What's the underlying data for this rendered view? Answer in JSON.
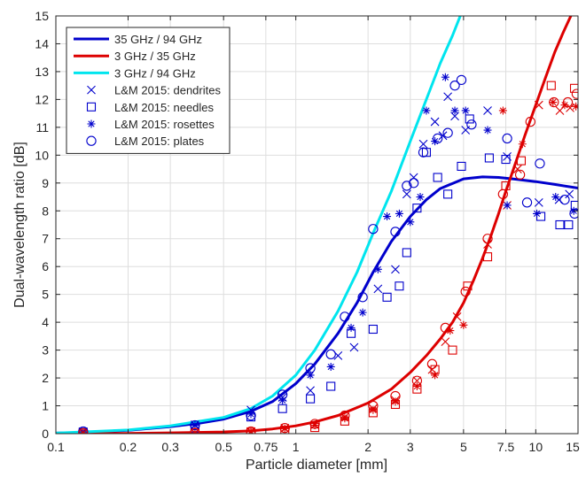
{
  "chart_data": {
    "type": "scatter",
    "xlabel": "Particle diameter [mm]",
    "ylabel": "Dual-wavelength ratio [dB]",
    "xscale": "log",
    "xlim": [
      0.1,
      15
    ],
    "ylim": [
      0,
      15
    ],
    "grid": true,
    "legend_position": "top-left",
    "x_ticks": [
      {
        "value": 0.1,
        "label": "0.1"
      },
      {
        "value": 0.2,
        "label": "0.2"
      },
      {
        "value": 0.3,
        "label": "0.3"
      },
      {
        "value": 0.5,
        "label": "0.5"
      },
      {
        "value": 0.75,
        "label": "0.75"
      },
      {
        "value": 1,
        "label": "1"
      },
      {
        "value": 2,
        "label": "2"
      },
      {
        "value": 3,
        "label": "3"
      },
      {
        "value": 5,
        "label": "5"
      },
      {
        "value": 7.5,
        "label": "7.5"
      },
      {
        "value": 10,
        "label": "10"
      },
      {
        "value": 15,
        "label": "15"
      }
    ],
    "y_ticks": [
      0,
      1,
      2,
      3,
      4,
      5,
      6,
      7,
      8,
      9,
      10,
      11,
      12,
      13,
      14,
      15
    ],
    "lines": [
      {
        "name": "35 GHz / 94 GHz",
        "color": "#0000cc",
        "x": [
          0.1,
          0.13,
          0.2,
          0.3,
          0.4,
          0.5,
          0.65,
          0.8,
          1.0,
          1.2,
          1.5,
          1.8,
          2.1,
          2.5,
          3.0,
          3.5,
          4.0,
          5.0,
          6.0,
          7.0,
          8.0,
          10.0,
          12.0,
          15.0
        ],
        "y": [
          0.02,
          0.04,
          0.12,
          0.25,
          0.38,
          0.52,
          0.8,
          1.15,
          1.8,
          2.5,
          3.6,
          4.7,
          5.8,
          6.9,
          7.8,
          8.4,
          8.8,
          9.15,
          9.22,
          9.2,
          9.15,
          9.05,
          8.95,
          8.82
        ]
      },
      {
        "name": "3 GHz / 35 GHz",
        "color": "#dd0000",
        "x": [
          0.1,
          0.2,
          0.3,
          0.5,
          0.65,
          0.8,
          1.0,
          1.2,
          1.5,
          2.0,
          2.5,
          3.0,
          3.5,
          4.0,
          4.5,
          5.0,
          5.5,
          6.0,
          6.5,
          7.0,
          7.5,
          8.0,
          9.0,
          10.0,
          11.0,
          12.0,
          13.0,
          14.0,
          15.0
        ],
        "y": [
          0.0,
          0.01,
          0.03,
          0.06,
          0.1,
          0.17,
          0.28,
          0.42,
          0.65,
          1.1,
          1.6,
          2.2,
          2.8,
          3.4,
          4.0,
          4.7,
          5.5,
          6.3,
          7.1,
          7.9,
          8.7,
          9.4,
          10.7,
          11.8,
          12.8,
          13.7,
          14.4,
          15.0,
          15.5
        ]
      },
      {
        "name": "3 GHz / 94 GHz",
        "color": "#00e5ee",
        "x": [
          0.1,
          0.2,
          0.3,
          0.5,
          0.65,
          0.8,
          1.0,
          1.2,
          1.5,
          1.8,
          2.1,
          2.5,
          3.0,
          3.5,
          4.0,
          4.5,
          5.0
        ],
        "y": [
          0.02,
          0.13,
          0.28,
          0.58,
          0.9,
          1.35,
          2.1,
          3.0,
          4.4,
          5.8,
          7.2,
          8.7,
          10.5,
          12.0,
          13.3,
          14.3,
          15.3
        ]
      }
    ],
    "scatter_series": [
      {
        "name": "L&M 2015: dendrites",
        "marker": "x",
        "points": [
          {
            "x": 0.13,
            "y": 0.07,
            "c": "#0000cc"
          },
          {
            "x": 0.38,
            "y": 0.32,
            "c": "#0000cc"
          },
          {
            "x": 0.65,
            "y": 0.85,
            "c": "#0000cc"
          },
          {
            "x": 0.88,
            "y": 1.3,
            "c": "#0000cc"
          },
          {
            "x": 1.15,
            "y": 1.55,
            "c": "#0000cc"
          },
          {
            "x": 1.5,
            "y": 2.8,
            "c": "#0000cc"
          },
          {
            "x": 1.75,
            "y": 3.1,
            "c": "#0000cc"
          },
          {
            "x": 2.2,
            "y": 5.2,
            "c": "#0000cc"
          },
          {
            "x": 2.6,
            "y": 5.9,
            "c": "#0000cc"
          },
          {
            "x": 2.9,
            "y": 8.6,
            "c": "#0000cc"
          },
          {
            "x": 3.1,
            "y": 9.2,
            "c": "#0000cc"
          },
          {
            "x": 3.4,
            "y": 10.4,
            "c": "#0000cc"
          },
          {
            "x": 3.8,
            "y": 11.2,
            "c": "#0000cc"
          },
          {
            "x": 4.1,
            "y": 10.7,
            "c": "#0000cc"
          },
          {
            "x": 4.3,
            "y": 12.1,
            "c": "#0000cc"
          },
          {
            "x": 4.6,
            "y": 11.4,
            "c": "#0000cc"
          },
          {
            "x": 5.1,
            "y": 10.9,
            "c": "#0000cc"
          },
          {
            "x": 6.3,
            "y": 11.6,
            "c": "#0000cc"
          },
          {
            "x": 7.6,
            "y": 9.95,
            "c": "#0000cc"
          },
          {
            "x": 10.3,
            "y": 8.3,
            "c": "#0000cc"
          },
          {
            "x": 12.5,
            "y": 8.4,
            "c": "#0000cc"
          },
          {
            "x": 13.8,
            "y": 8.6,
            "c": "#0000cc"
          },
          {
            "x": 0.13,
            "y": 0.02,
            "c": "#dd0000"
          },
          {
            "x": 0.38,
            "y": 0.03,
            "c": "#dd0000"
          },
          {
            "x": 0.65,
            "y": 0.08,
            "c": "#dd0000"
          },
          {
            "x": 0.9,
            "y": 0.2,
            "c": "#dd0000"
          },
          {
            "x": 1.2,
            "y": 0.32,
            "c": "#dd0000"
          },
          {
            "x": 1.6,
            "y": 0.6,
            "c": "#dd0000"
          },
          {
            "x": 2.1,
            "y": 0.9,
            "c": "#dd0000"
          },
          {
            "x": 2.6,
            "y": 1.2,
            "c": "#dd0000"
          },
          {
            "x": 3.2,
            "y": 1.9,
            "c": "#dd0000"
          },
          {
            "x": 3.7,
            "y": 2.3,
            "c": "#dd0000"
          },
          {
            "x": 4.2,
            "y": 3.3,
            "c": "#dd0000"
          },
          {
            "x": 4.7,
            "y": 4.2,
            "c": "#dd0000"
          },
          {
            "x": 6.3,
            "y": 6.8,
            "c": "#dd0000"
          },
          {
            "x": 7.6,
            "y": 8.2,
            "c": "#dd0000"
          },
          {
            "x": 8.4,
            "y": 9.5,
            "c": "#dd0000"
          },
          {
            "x": 10.3,
            "y": 11.8,
            "c": "#dd0000"
          },
          {
            "x": 12.6,
            "y": 11.6,
            "c": "#dd0000"
          },
          {
            "x": 13.9,
            "y": 11.7,
            "c": "#dd0000"
          }
        ]
      },
      {
        "name": "L&M 2015: needles",
        "marker": "square",
        "points": [
          {
            "x": 0.13,
            "y": 0.05,
            "c": "#0000cc"
          },
          {
            "x": 0.38,
            "y": 0.2,
            "c": "#0000cc"
          },
          {
            "x": 0.65,
            "y": 0.6,
            "c": "#0000cc"
          },
          {
            "x": 0.88,
            "y": 0.9,
            "c": "#0000cc"
          },
          {
            "x": 1.15,
            "y": 1.25,
            "c": "#0000cc"
          },
          {
            "x": 1.4,
            "y": 1.7,
            "c": "#0000cc"
          },
          {
            "x": 1.7,
            "y": 3.6,
            "c": "#0000cc"
          },
          {
            "x": 2.1,
            "y": 3.75,
            "c": "#0000cc"
          },
          {
            "x": 2.4,
            "y": 4.9,
            "c": "#0000cc"
          },
          {
            "x": 2.7,
            "y": 5.3,
            "c": "#0000cc"
          },
          {
            "x": 2.9,
            "y": 6.5,
            "c": "#0000cc"
          },
          {
            "x": 3.2,
            "y": 8.1,
            "c": "#0000cc"
          },
          {
            "x": 3.5,
            "y": 10.1,
            "c": "#0000cc"
          },
          {
            "x": 3.9,
            "y": 9.2,
            "c": "#0000cc"
          },
          {
            "x": 4.3,
            "y": 8.6,
            "c": "#0000cc"
          },
          {
            "x": 4.9,
            "y": 9.6,
            "c": "#0000cc"
          },
          {
            "x": 5.3,
            "y": 11.3,
            "c": "#0000cc"
          },
          {
            "x": 6.4,
            "y": 9.9,
            "c": "#0000cc"
          },
          {
            "x": 7.5,
            "y": 9.85,
            "c": "#0000cc"
          },
          {
            "x": 10.5,
            "y": 7.8,
            "c": "#0000cc"
          },
          {
            "x": 12.6,
            "y": 7.5,
            "c": "#0000cc"
          },
          {
            "x": 13.7,
            "y": 7.5,
            "c": "#0000cc"
          },
          {
            "x": 14.6,
            "y": 8.2,
            "c": "#0000cc"
          },
          {
            "x": 0.13,
            "y": 0.02,
            "c": "#dd0000"
          },
          {
            "x": 0.38,
            "y": 0.02,
            "c": "#dd0000"
          },
          {
            "x": 0.65,
            "y": 0.05,
            "c": "#dd0000"
          },
          {
            "x": 0.9,
            "y": 0.12,
            "c": "#dd0000"
          },
          {
            "x": 1.2,
            "y": 0.22,
            "c": "#dd0000"
          },
          {
            "x": 1.6,
            "y": 0.45,
            "c": "#dd0000"
          },
          {
            "x": 2.1,
            "y": 0.75,
            "c": "#dd0000"
          },
          {
            "x": 2.6,
            "y": 1.05,
            "c": "#dd0000"
          },
          {
            "x": 3.2,
            "y": 1.6,
            "c": "#dd0000"
          },
          {
            "x": 3.8,
            "y": 2.3,
            "c": "#dd0000"
          },
          {
            "x": 4.5,
            "y": 3.0,
            "c": "#dd0000"
          },
          {
            "x": 5.2,
            "y": 5.3,
            "c": "#dd0000"
          },
          {
            "x": 6.3,
            "y": 6.35,
            "c": "#dd0000"
          },
          {
            "x": 7.5,
            "y": 8.9,
            "c": "#dd0000"
          },
          {
            "x": 8.7,
            "y": 9.8,
            "c": "#dd0000"
          },
          {
            "x": 11.6,
            "y": 12.5,
            "c": "#dd0000"
          },
          {
            "x": 14.5,
            "y": 12.4,
            "c": "#dd0000"
          }
        ]
      },
      {
        "name": "L&M 2015: rosettes",
        "marker": "asterisk",
        "points": [
          {
            "x": 0.13,
            "y": 0.06,
            "c": "#0000cc"
          },
          {
            "x": 0.38,
            "y": 0.3,
            "c": "#0000cc"
          },
          {
            "x": 0.65,
            "y": 0.7,
            "c": "#0000cc"
          },
          {
            "x": 0.88,
            "y": 1.2,
            "c": "#0000cc"
          },
          {
            "x": 1.15,
            "y": 2.1,
            "c": "#0000cc"
          },
          {
            "x": 1.4,
            "y": 2.4,
            "c": "#0000cc"
          },
          {
            "x": 1.7,
            "y": 3.8,
            "c": "#0000cc"
          },
          {
            "x": 1.9,
            "y": 4.35,
            "c": "#0000cc"
          },
          {
            "x": 2.2,
            "y": 5.9,
            "c": "#0000cc"
          },
          {
            "x": 2.4,
            "y": 7.8,
            "c": "#0000cc"
          },
          {
            "x": 2.7,
            "y": 7.9,
            "c": "#0000cc"
          },
          {
            "x": 3.0,
            "y": 7.6,
            "c": "#0000cc"
          },
          {
            "x": 3.3,
            "y": 8.5,
            "c": "#0000cc"
          },
          {
            "x": 3.5,
            "y": 11.6,
            "c": "#0000cc"
          },
          {
            "x": 3.8,
            "y": 10.5,
            "c": "#0000cc"
          },
          {
            "x": 4.2,
            "y": 12.8,
            "c": "#0000cc"
          },
          {
            "x": 4.6,
            "y": 11.6,
            "c": "#0000cc"
          },
          {
            "x": 5.1,
            "y": 11.6,
            "c": "#0000cc"
          },
          {
            "x": 6.3,
            "y": 10.9,
            "c": "#0000cc"
          },
          {
            "x": 7.6,
            "y": 8.2,
            "c": "#0000cc"
          },
          {
            "x": 10.1,
            "y": 7.9,
            "c": "#0000cc"
          },
          {
            "x": 12.1,
            "y": 8.5,
            "c": "#0000cc"
          },
          {
            "x": 14.4,
            "y": 8.0,
            "c": "#0000cc"
          },
          {
            "x": 0.13,
            "y": 0.02,
            "c": "#dd0000"
          },
          {
            "x": 0.38,
            "y": 0.03,
            "c": "#dd0000"
          },
          {
            "x": 0.65,
            "y": 0.07,
            "c": "#dd0000"
          },
          {
            "x": 0.9,
            "y": 0.18,
            "c": "#dd0000"
          },
          {
            "x": 1.2,
            "y": 0.3,
            "c": "#dd0000"
          },
          {
            "x": 1.6,
            "y": 0.55,
            "c": "#dd0000"
          },
          {
            "x": 2.1,
            "y": 0.85,
            "c": "#dd0000"
          },
          {
            "x": 2.6,
            "y": 1.15,
            "c": "#dd0000"
          },
          {
            "x": 3.2,
            "y": 1.7,
            "c": "#dd0000"
          },
          {
            "x": 3.8,
            "y": 2.1,
            "c": "#dd0000"
          },
          {
            "x": 4.4,
            "y": 3.7,
            "c": "#dd0000"
          },
          {
            "x": 5.0,
            "y": 3.9,
            "c": "#dd0000"
          },
          {
            "x": 7.3,
            "y": 11.6,
            "c": "#dd0000"
          },
          {
            "x": 8.8,
            "y": 10.4,
            "c": "#dd0000"
          },
          {
            "x": 11.8,
            "y": 11.9,
            "c": "#dd0000"
          },
          {
            "x": 13.2,
            "y": 11.8,
            "c": "#dd0000"
          },
          {
            "x": 14.7,
            "y": 11.75,
            "c": "#dd0000"
          }
        ]
      },
      {
        "name": "L&M 2015: plates",
        "marker": "circle",
        "points": [
          {
            "x": 0.13,
            "y": 0.08,
            "c": "#0000cc"
          },
          {
            "x": 0.38,
            "y": 0.3,
            "c": "#0000cc"
          },
          {
            "x": 0.65,
            "y": 0.65,
            "c": "#0000cc"
          },
          {
            "x": 0.88,
            "y": 1.4,
            "c": "#0000cc"
          },
          {
            "x": 1.15,
            "y": 2.35,
            "c": "#0000cc"
          },
          {
            "x": 1.4,
            "y": 2.85,
            "c": "#0000cc"
          },
          {
            "x": 1.6,
            "y": 4.2,
            "c": "#0000cc"
          },
          {
            "x": 1.9,
            "y": 4.9,
            "c": "#0000cc"
          },
          {
            "x": 2.1,
            "y": 7.35,
            "c": "#0000cc"
          },
          {
            "x": 2.6,
            "y": 7.25,
            "c": "#0000cc"
          },
          {
            "x": 2.9,
            "y": 8.9,
            "c": "#0000cc"
          },
          {
            "x": 3.1,
            "y": 9.0,
            "c": "#0000cc"
          },
          {
            "x": 3.4,
            "y": 10.1,
            "c": "#0000cc"
          },
          {
            "x": 3.9,
            "y": 10.6,
            "c": "#0000cc"
          },
          {
            "x": 4.3,
            "y": 10.8,
            "c": "#0000cc"
          },
          {
            "x": 4.6,
            "y": 12.5,
            "c": "#0000cc"
          },
          {
            "x": 4.9,
            "y": 12.7,
            "c": "#0000cc"
          },
          {
            "x": 5.4,
            "y": 11.1,
            "c": "#0000cc"
          },
          {
            "x": 7.6,
            "y": 10.6,
            "c": "#0000cc"
          },
          {
            "x": 9.2,
            "y": 8.3,
            "c": "#0000cc"
          },
          {
            "x": 10.4,
            "y": 9.7,
            "c": "#0000cc"
          },
          {
            "x": 13.2,
            "y": 8.4,
            "c": "#0000cc"
          },
          {
            "x": 14.5,
            "y": 7.9,
            "c": "#0000cc"
          },
          {
            "x": 0.13,
            "y": 0.02,
            "c": "#dd0000"
          },
          {
            "x": 0.38,
            "y": 0.03,
            "c": "#dd0000"
          },
          {
            "x": 0.65,
            "y": 0.08,
            "c": "#dd0000"
          },
          {
            "x": 0.9,
            "y": 0.2,
            "c": "#dd0000"
          },
          {
            "x": 1.2,
            "y": 0.35,
            "c": "#dd0000"
          },
          {
            "x": 1.6,
            "y": 0.65,
            "c": "#dd0000"
          },
          {
            "x": 2.1,
            "y": 1.0,
            "c": "#dd0000"
          },
          {
            "x": 2.6,
            "y": 1.35,
            "c": "#dd0000"
          },
          {
            "x": 3.2,
            "y": 1.9,
            "c": "#dd0000"
          },
          {
            "x": 3.7,
            "y": 2.5,
            "c": "#dd0000"
          },
          {
            "x": 4.2,
            "y": 3.8,
            "c": "#dd0000"
          },
          {
            "x": 5.1,
            "y": 5.1,
            "c": "#dd0000"
          },
          {
            "x": 6.3,
            "y": 7.0,
            "c": "#dd0000"
          },
          {
            "x": 7.3,
            "y": 8.6,
            "c": "#dd0000"
          },
          {
            "x": 8.6,
            "y": 9.3,
            "c": "#dd0000"
          },
          {
            "x": 9.5,
            "y": 11.2,
            "c": "#dd0000"
          },
          {
            "x": 11.9,
            "y": 11.9,
            "c": "#dd0000"
          },
          {
            "x": 13.6,
            "y": 11.9,
            "c": "#dd0000"
          },
          {
            "x": 14.8,
            "y": 12.2,
            "c": "#dd0000"
          }
        ]
      }
    ]
  }
}
